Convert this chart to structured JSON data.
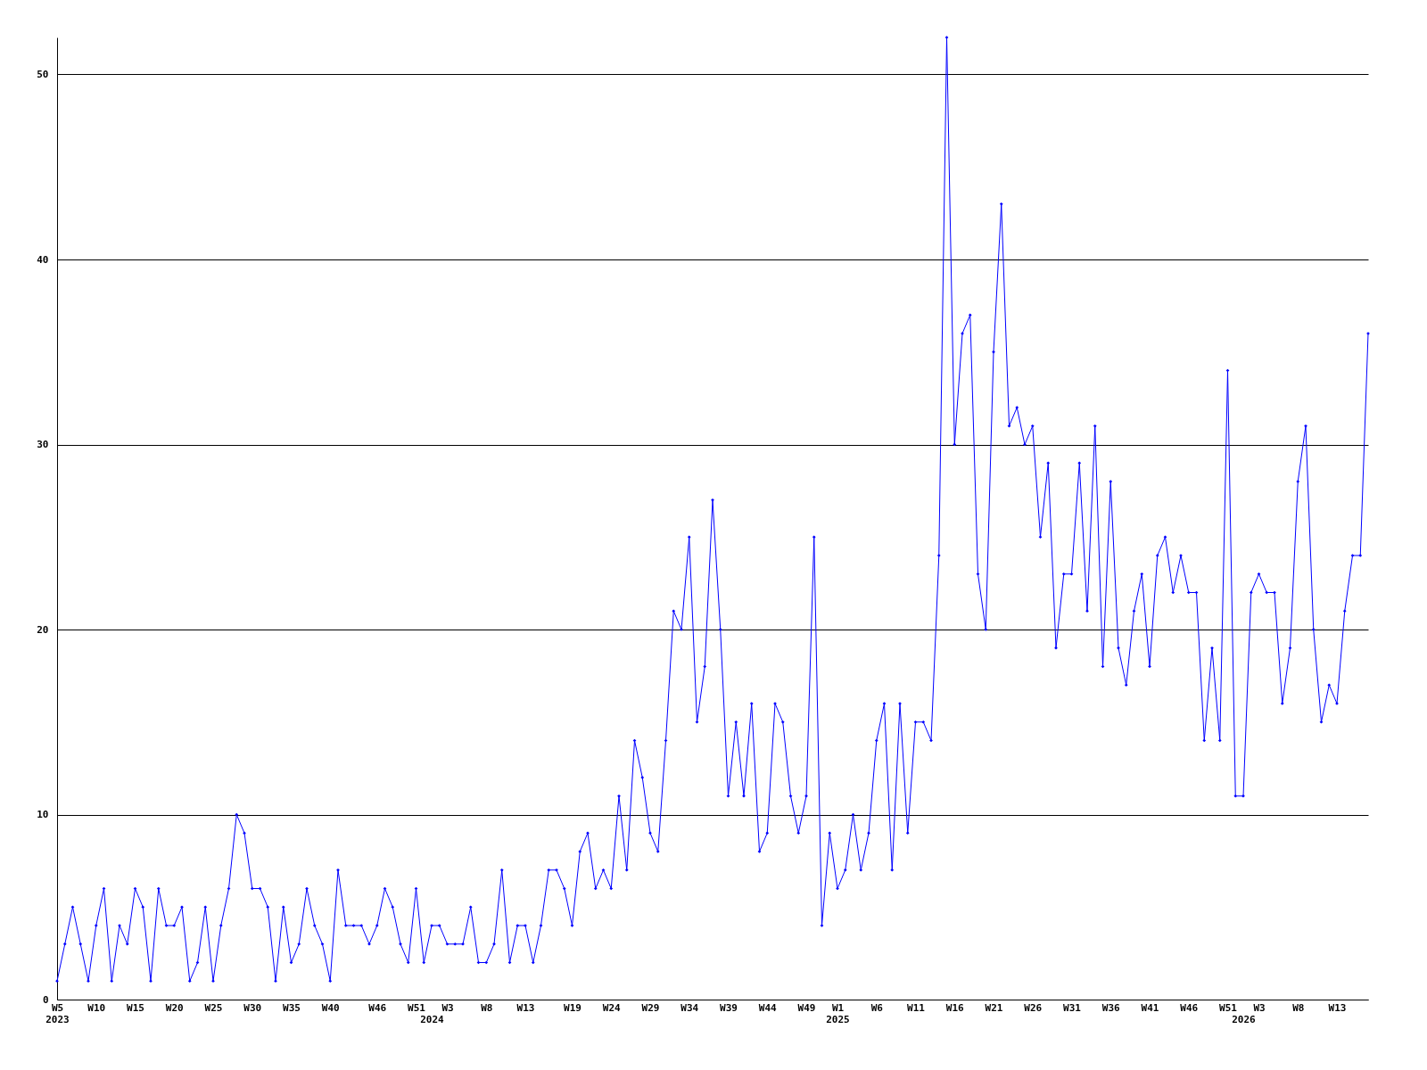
{
  "chart_data": {
    "type": "line",
    "categories": [
      "W5\n2023",
      null,
      null,
      null,
      null,
      "W10",
      null,
      null,
      null,
      null,
      "W15",
      null,
      null,
      null,
      null,
      "W20",
      null,
      null,
      null,
      null,
      "W25",
      null,
      null,
      null,
      null,
      "W30",
      null,
      null,
      null,
      null,
      "W35",
      null,
      null,
      null,
      null,
      "W40",
      null,
      null,
      null,
      null,
      null,
      "W46",
      null,
      null,
      null,
      null,
      "W51",
      null,
      "\n2024",
      null,
      "W3",
      null,
      null,
      null,
      null,
      "W8",
      null,
      null,
      null,
      null,
      "W13",
      null,
      null,
      null,
      null,
      null,
      "W19",
      null,
      null,
      null,
      null,
      "W24",
      null,
      null,
      null,
      null,
      "W29",
      null,
      null,
      null,
      null,
      "W34",
      null,
      null,
      null,
      null,
      "W39",
      null,
      null,
      null,
      null,
      "W44",
      null,
      null,
      null,
      null,
      "W49",
      null,
      null,
      null,
      "W1\n2025",
      null,
      null,
      null,
      null,
      "W6",
      null,
      null,
      null,
      null,
      "W11",
      null,
      null,
      null,
      null,
      "W16",
      null,
      null,
      null,
      null,
      "W21",
      null,
      null,
      null,
      null,
      "W26",
      null,
      null,
      null,
      null,
      "W31",
      null,
      null,
      null,
      null,
      "W36",
      null,
      null,
      null,
      null,
      "W41",
      null,
      null,
      null,
      null,
      "W46",
      null,
      null,
      null,
      null,
      "W51",
      null,
      "\n2026",
      null,
      "W3",
      null,
      null,
      null,
      null,
      "W8",
      null,
      null,
      null,
      null,
      "W13",
      null,
      null,
      null,
      null
    ],
    "series": [
      {
        "color": "#0000ff",
        "values": [
          1,
          3,
          5,
          3,
          1,
          4,
          6,
          1,
          4,
          3,
          6,
          5,
          1,
          6,
          4,
          4,
          5,
          1,
          2,
          5,
          1,
          4,
          6,
          10,
          9,
          6,
          6,
          5,
          1,
          5,
          2,
          3,
          6,
          4,
          3,
          1,
          7,
          4,
          4,
          4,
          3,
          4,
          6,
          5,
          3,
          2,
          6,
          2,
          4,
          4,
          3,
          3,
          3,
          5,
          2,
          2,
          3,
          7,
          2,
          4,
          4,
          2,
          4,
          7,
          7,
          6,
          4,
          8,
          9,
          6,
          7,
          6,
          11,
          7,
          14,
          12,
          9,
          8,
          14,
          21,
          20,
          25,
          15,
          18,
          27,
          20,
          11,
          15,
          11,
          16,
          8,
          9,
          16,
          15,
          11,
          9,
          11,
          25,
          4,
          9,
          6,
          7,
          10,
          7,
          9,
          14,
          16,
          7,
          16,
          9,
          15,
          15,
          14,
          24,
          52,
          30,
          36,
          37,
          23,
          20,
          35,
          43,
          31,
          32,
          30,
          31,
          25,
          29,
          19,
          23,
          23,
          29,
          21,
          31,
          18,
          28,
          19,
          17,
          21,
          23,
          18,
          24,
          25,
          22,
          24,
          22,
          22,
          14,
          19,
          14,
          34,
          11,
          11,
          22,
          23,
          22,
          22,
          16,
          19,
          28,
          31,
          20,
          15,
          17,
          16,
          21,
          24,
          24,
          36
        ]
      }
    ],
    "ylim": [
      0,
      52
    ],
    "yticks": [
      0,
      10,
      20,
      30,
      40,
      50
    ],
    "grid": "y",
    "marker": "diamond",
    "line_style": "solid"
  }
}
